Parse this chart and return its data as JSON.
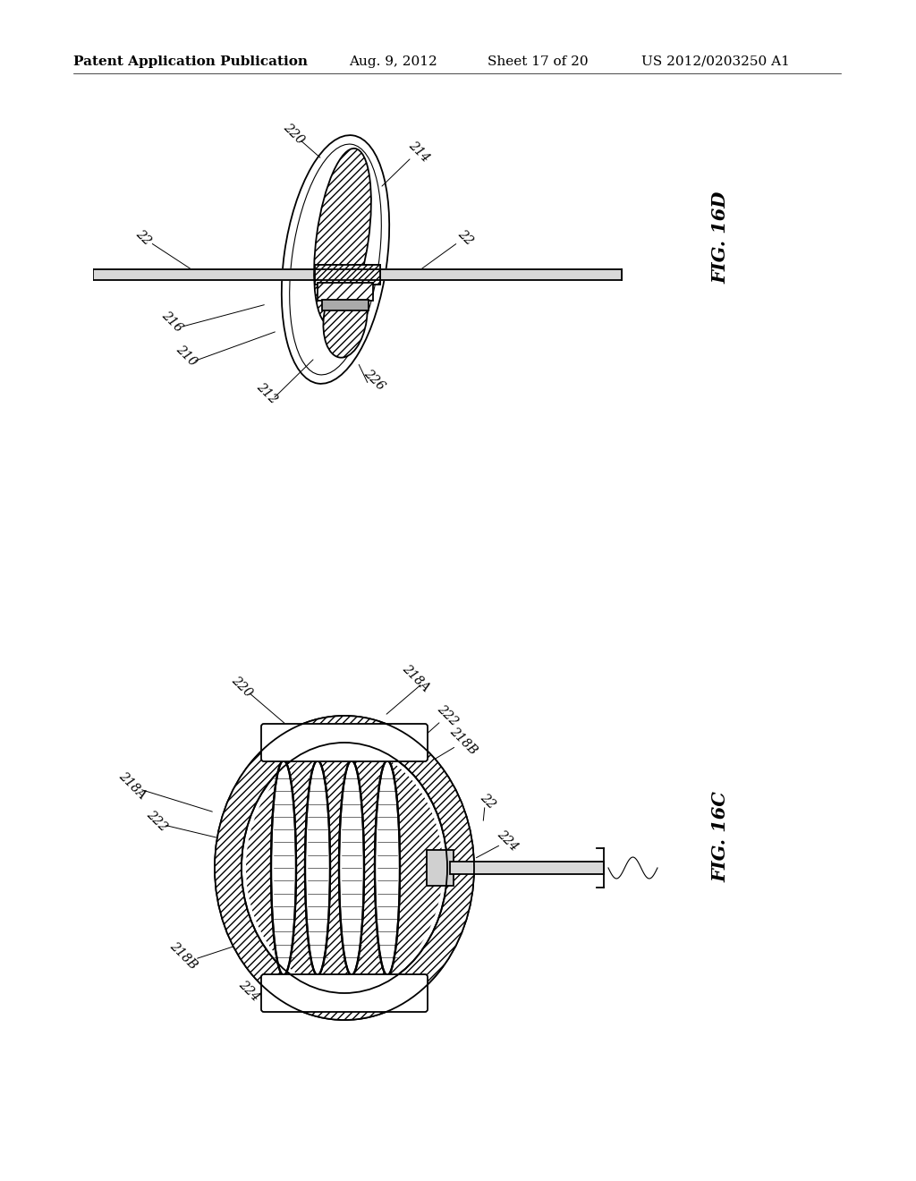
{
  "bg_color": "#ffffff",
  "line_color": "#000000",
  "header_text": "Patent Application Publication",
  "header_date": "Aug. 9, 2012",
  "header_sheet": "Sheet 17 of 20",
  "header_patent": "US 2012/0203250 A1",
  "fig_top_label": "FIG. 16D",
  "fig_bottom_label": "FIG. 16C",
  "font_size_header": 11,
  "font_size_ref": 10,
  "font_size_fig": 15
}
